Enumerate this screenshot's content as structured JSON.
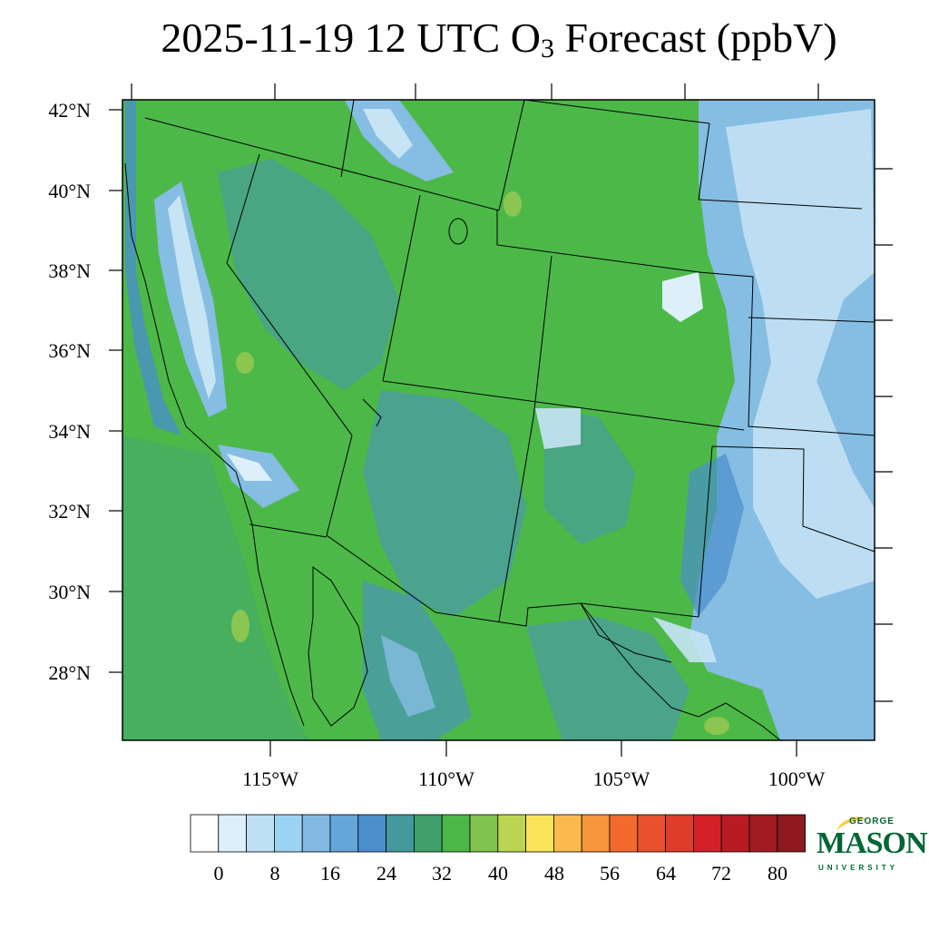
{
  "title": {
    "prefix": "2025-11-19 12 UTC O",
    "subscript": "3",
    "suffix": " Forecast (ppbV)"
  },
  "map": {
    "region": "Western United States",
    "lat_ticks": [
      {
        "value": 42,
        "label": "42°N"
      },
      {
        "value": 40,
        "label": "40°N"
      },
      {
        "value": 38,
        "label": "38°N"
      },
      {
        "value": 36,
        "label": "36°N"
      },
      {
        "value": 34,
        "label": "34°N"
      },
      {
        "value": 32,
        "label": "32°N"
      },
      {
        "value": 30,
        "label": "30°N"
      },
      {
        "value": 28,
        "label": "28°N"
      }
    ],
    "lon_ticks": [
      {
        "value": -115,
        "label": "115°W"
      },
      {
        "value": -110,
        "label": "110°W"
      },
      {
        "value": -105,
        "label": "105°W"
      },
      {
        "value": -100,
        "label": "100°W"
      }
    ],
    "fill_colors": {
      "green": "#4CB848",
      "teal": "#3F9E8A",
      "blue": "#4A8FCB",
      "light_blue": "#86BDE3",
      "pale_blue": "#C7E4F4",
      "yellow_green": "#8BC652"
    }
  },
  "colorbar": {
    "colors": [
      "#FFFFFF",
      "#DDEFF9",
      "#BDE0F4",
      "#9CD3F2",
      "#80BAE2",
      "#64A5DA",
      "#4A8FCB",
      "#43999C",
      "#3FA06A",
      "#4CB848",
      "#80C34E",
      "#BDD452",
      "#F9E45A",
      "#F9BB4E",
      "#F6953B",
      "#F26A2E",
      "#E9502E",
      "#DF3C2B",
      "#D42128",
      "#B71C25",
      "#A01B22",
      "#8C1A1F"
    ],
    "labels": [
      "0",
      "8",
      "16",
      "24",
      "32",
      "40",
      "48",
      "56",
      "64",
      "72",
      "80"
    ]
  },
  "logo": {
    "top": "GEORGE",
    "main": "MASON",
    "bottom": "UNIVERSITY",
    "color": "#006633",
    "accent": "#FFCC33"
  }
}
